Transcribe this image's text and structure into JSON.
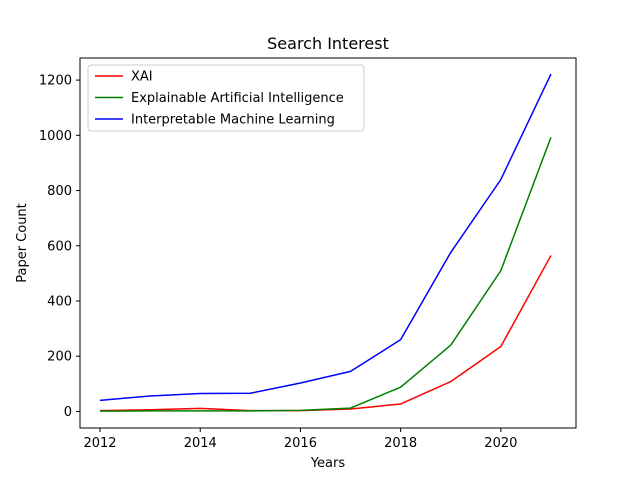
{
  "chart_data": {
    "type": "line",
    "title": "Search Interest",
    "xlabel": "Years",
    "ylabel": "Paper Count",
    "xlim": [
      2011.6,
      2021.5
    ],
    "ylim": [
      -60,
      1280
    ],
    "xticks": [
      2012,
      2014,
      2016,
      2018,
      2020
    ],
    "yticks": [
      0,
      200,
      400,
      600,
      800,
      1000,
      1200
    ],
    "grid": false,
    "legend_position": "upper-left",
    "x": [
      2012,
      2013,
      2014,
      2015,
      2016,
      2017,
      2018,
      2019,
      2020,
      2021
    ],
    "series": [
      {
        "name": "XAI",
        "color": "#ff0000",
        "values": [
          3,
          6,
          11,
          3,
          3,
          9,
          27,
          108,
          235,
          565
        ]
      },
      {
        "name": "Explainable Artificial Intelligence",
        "color": "#008000",
        "values": [
          1,
          2,
          2,
          2,
          4,
          12,
          88,
          240,
          510,
          993
        ]
      },
      {
        "name": "Interpretable Machine Learning",
        "color": "#0000ff",
        "values": [
          40,
          56,
          65,
          66,
          103,
          145,
          260,
          576,
          840,
          1222
        ]
      }
    ]
  }
}
